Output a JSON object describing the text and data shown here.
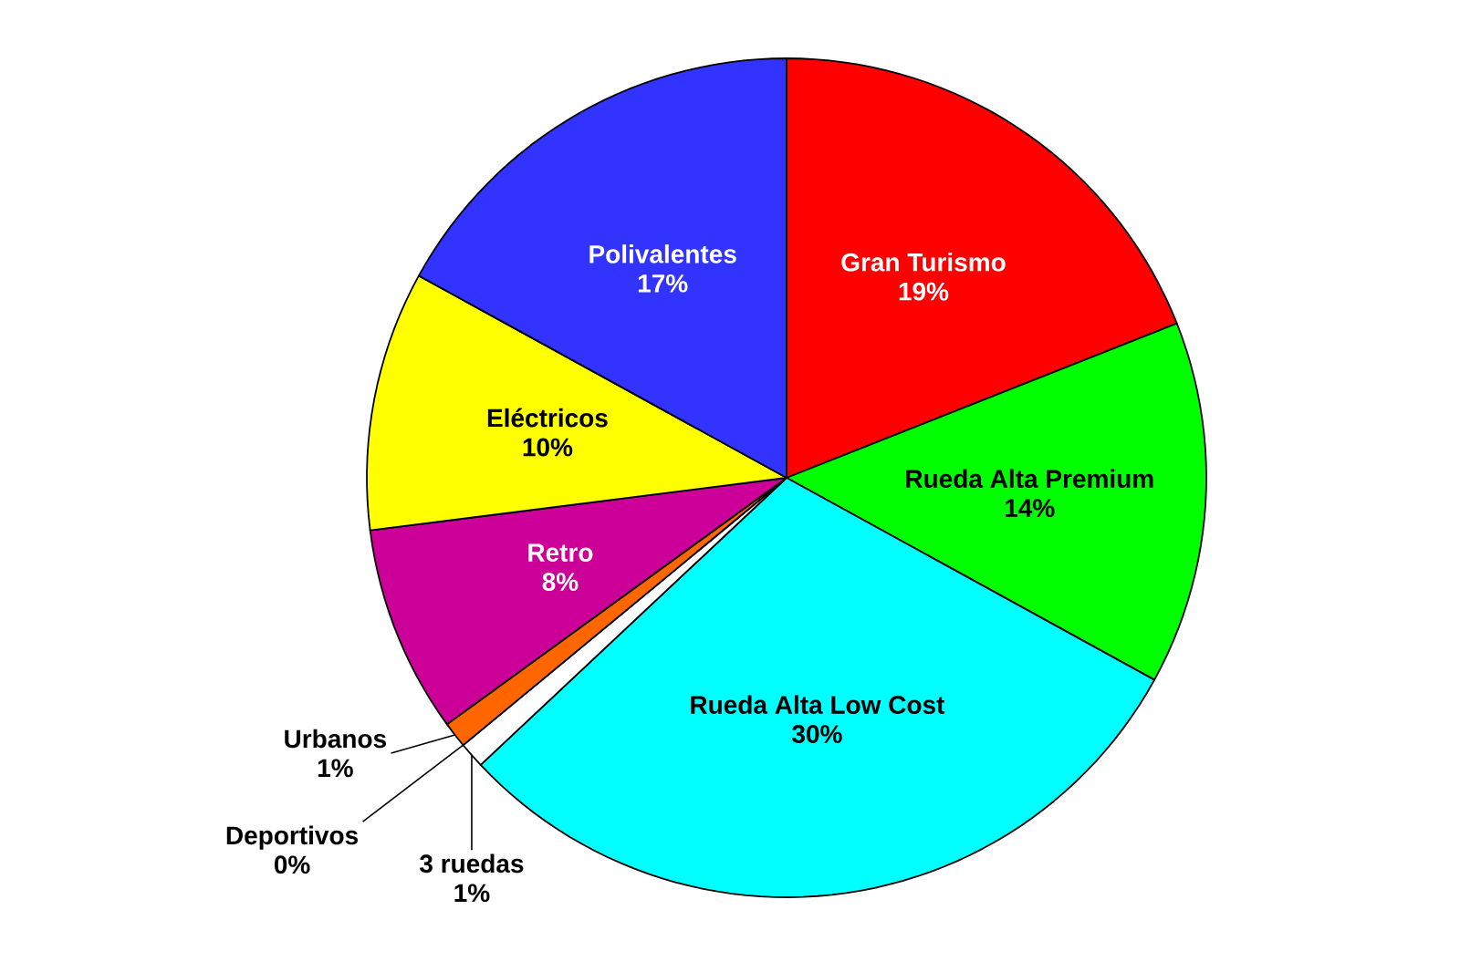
{
  "chart_data": {
    "type": "pie",
    "categories": [
      "Gran Turismo",
      "Rueda Alta Premium",
      "Rueda Alta Low Cost",
      "3 ruedas",
      "Deportivos",
      "Urbanos",
      "Retro",
      "Eléctricos",
      "Polivalentes"
    ],
    "values": [
      19,
      14,
      30,
      1,
      0,
      1,
      8,
      10,
      17
    ],
    "value_labels": [
      "19%",
      "14%",
      "30%",
      "1%",
      "0%",
      "1%",
      "8%",
      "10%",
      "17%"
    ],
    "colors": [
      "#ff0000",
      "#00ff00",
      "#00ffff",
      "#ffffff",
      "#808080",
      "#ff6600",
      "#cc0099",
      "#ffff00",
      "#3333ff"
    ]
  }
}
